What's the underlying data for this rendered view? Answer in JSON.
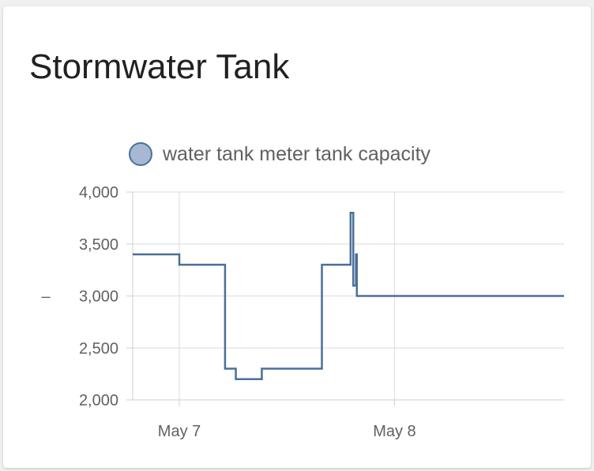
{
  "card": {
    "title": "Stormwater Tank"
  },
  "chart_data": {
    "type": "line",
    "title": "",
    "xlabel": "",
    "ylabel": "–",
    "ylim": [
      2000,
      4000
    ],
    "yticks": [
      {
        "value": 4000,
        "label": "4,000"
      },
      {
        "value": 3500,
        "label": "3,500"
      },
      {
        "value": 3000,
        "label": "3,000"
      },
      {
        "value": 2500,
        "label": "2,500"
      },
      {
        "value": 2000,
        "label": "2,000"
      }
    ],
    "xlim_hours": [
      -5.2,
      42.9
    ],
    "xticks": [
      {
        "hour": 0,
        "label": "May 7"
      },
      {
        "hour": 24,
        "label": "May 8"
      }
    ],
    "grid": true,
    "legend_position": "top",
    "series": [
      {
        "name": "water tank meter tank capacity",
        "color": "#4a6f9a",
        "fill": "#a7b8d2",
        "step": true,
        "points": [
          {
            "hour": -5.2,
            "value": 3400
          },
          {
            "hour": 3.3,
            "value": 3300
          },
          {
            "hour": 0.0,
            "value": 3300
          },
          {
            "hour": 5.1,
            "value": 2300
          },
          {
            "hour": 6.3,
            "value": 2200
          },
          {
            "hour": 9.2,
            "value": 2300
          },
          {
            "hour": 15.9,
            "value": 3300
          },
          {
            "hour": 19.1,
            "value": 3800
          },
          {
            "hour": 19.4,
            "value": 3100
          },
          {
            "hour": 19.7,
            "value": 3400
          },
          {
            "hour": 19.8,
            "value": 3000
          },
          {
            "hour": 42.9,
            "value": 3000
          }
        ]
      }
    ]
  }
}
